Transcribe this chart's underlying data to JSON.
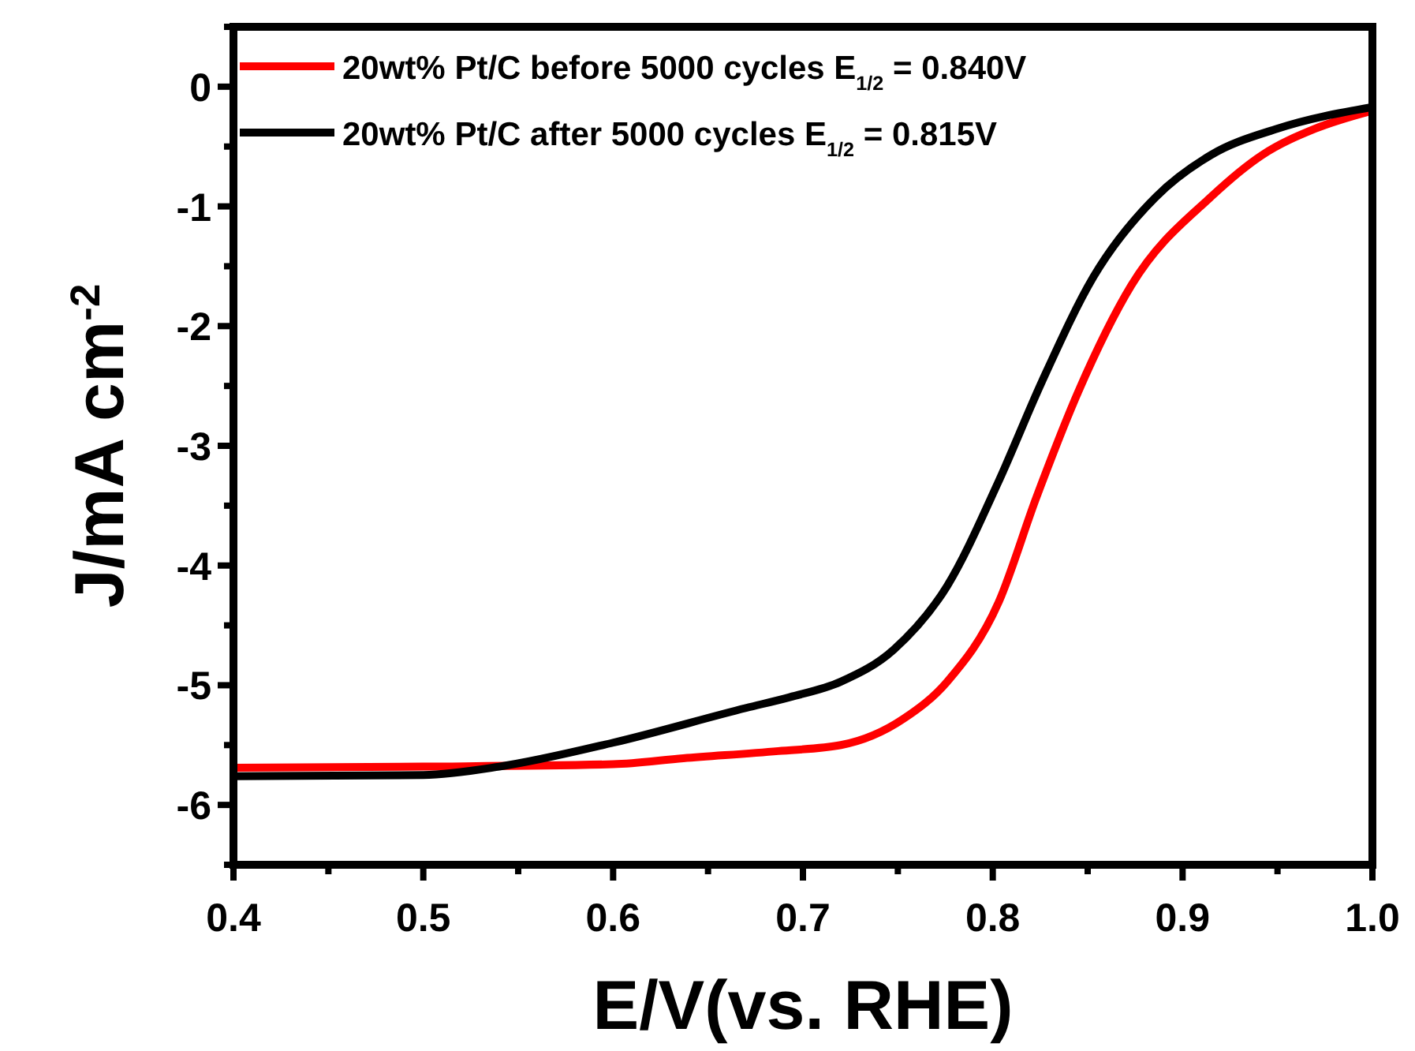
{
  "chart_data": {
    "type": "line",
    "xlabel": "E/V(vs. RHE)",
    "ylabel": "J/mA cm$^{-2}$",
    "xlim": [
      0.4,
      1.0
    ],
    "ylim": [
      -6.5,
      0.5
    ],
    "xticks": [
      0.4,
      {
        "value": 0.45,
        "label": null
      },
      0.5,
      {
        "value": 0.55,
        "label": null
      },
      0.6,
      {
        "value": 0.65,
        "label": null
      },
      0.7,
      {
        "value": 0.75,
        "label": null
      },
      0.8,
      {
        "value": 0.85,
        "label": null
      },
      0.9,
      {
        "value": 0.95,
        "label": null
      },
      {
        "value": 1.0,
        "label": "1.0"
      }
    ],
    "yticks": [
      {
        "value": -6.5,
        "label": null
      },
      -6,
      {
        "value": -5.5,
        "label": null
      },
      -5,
      {
        "value": -4.5,
        "label": null
      },
      -4,
      {
        "value": -3.5,
        "label": null
      },
      -3,
      {
        "value": -2.5,
        "label": null
      },
      -2,
      {
        "value": -1.5,
        "label": null
      },
      -1,
      {
        "value": -0.5,
        "label": null
      },
      0,
      {
        "value": 0.5,
        "label": null
      }
    ],
    "grid": false,
    "legend": "top left",
    "marker": "none",
    "line_style": "solid",
    "series": [
      {
        "name": "20wt% Pt/C before 5000 cycles E$_{1/2}$ = 0.840V",
        "color": "#ff0000",
        "x": [
          0.4,
          0.5,
          0.6,
          0.637,
          0.687,
          0.72,
          0.753,
          0.776,
          0.803,
          0.823,
          0.845,
          0.873,
          0.915,
          0.942,
          0.97,
          1.0
        ],
        "values": [
          -5.69,
          -5.68,
          -5.66,
          -5.61,
          -5.55,
          -5.5,
          -5.28,
          -4.97,
          -4.31,
          -3.43,
          -2.55,
          -1.66,
          -0.92,
          -0.57,
          -0.35,
          -0.2
        ]
      },
      {
        "name": "20wt% Pt/C after 5000 cycles E$_{1/2}$ = 0.815V",
        "color": "#000000",
        "x": [
          0.4,
          0.5,
          0.54,
          0.6,
          0.67,
          0.693,
          0.72,
          0.748,
          0.776,
          0.803,
          0.826,
          0.853,
          0.886,
          0.915,
          0.95,
          1.0
        ],
        "values": [
          -5.76,
          -5.75,
          -5.68,
          -5.48,
          -5.19,
          -5.1,
          -4.97,
          -4.7,
          -4.17,
          -3.3,
          -2.46,
          -1.59,
          -0.92,
          -0.57,
          -0.35,
          -0.17
        ]
      }
    ]
  }
}
